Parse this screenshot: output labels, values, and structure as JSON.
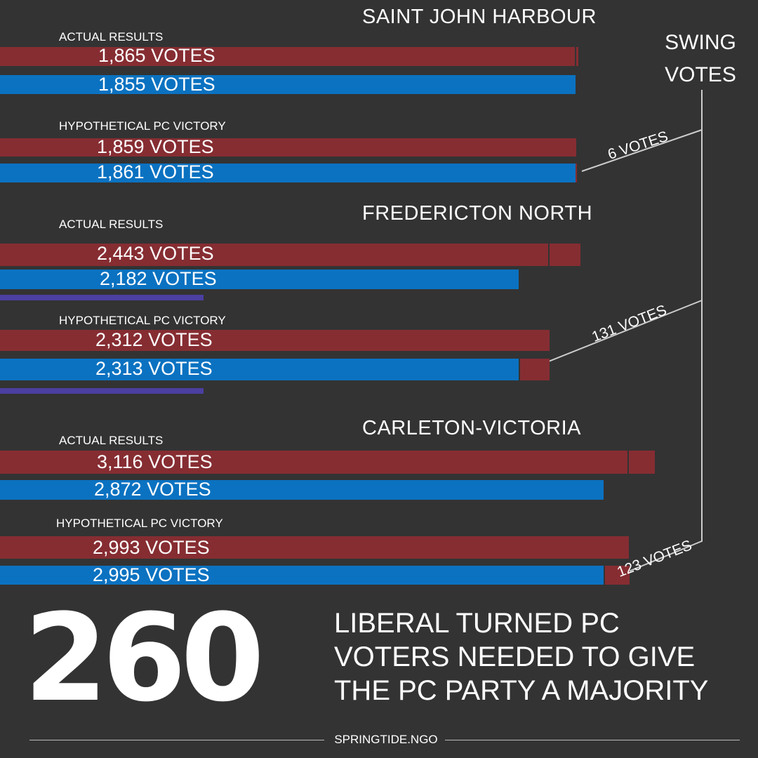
{
  "colors": {
    "background": "#333333",
    "pc": "#862d32",
    "liberal": "#0b72c1",
    "accent_underline": "#4b3fa0",
    "text": "#ffffff",
    "line": "#cccccc"
  },
  "chart_data": {
    "type": "bar",
    "orientation": "horizontal",
    "title": "",
    "series": [
      {
        "name": "",
        "party": "PC",
        "color": "#862d32"
      },
      {
        "name": "",
        "party": "Liberal",
        "color": "#0b72c1"
      }
    ],
    "swing_header": [
      "SWING",
      "VOTES"
    ],
    "ridings": [
      {
        "name": "SAINT JOHN HARBOUR",
        "swing_label": "6 VOTES",
        "swing": 6,
        "scenarios": [
          {
            "label": "ACTUAL RESULTS",
            "pc": {
              "value": 1865,
              "text": "1,865 VOTES"
            },
            "liberal": {
              "value": 1855,
              "text": "1,855 VOTES"
            }
          },
          {
            "label": "HYPOTHETICAL PC VICTORY",
            "pc": {
              "value": 1859,
              "text": "1,859 VOTES"
            },
            "liberal": {
              "value": 1861,
              "text": "1,861 VOTES"
            }
          }
        ]
      },
      {
        "name": "FREDERICTON NORTH",
        "swing_label": "131 VOTES",
        "swing": 131,
        "scenarios": [
          {
            "label": "ACTUAL RESULTS",
            "pc": {
              "value": 2443,
              "text": "2,443 VOTES"
            },
            "liberal": {
              "value": 2182,
              "text": "2,182 VOTES"
            }
          },
          {
            "label": "HYPOTHETICAL PC VICTORY",
            "pc": {
              "value": 2312,
              "text": "2,312 VOTES"
            },
            "liberal": {
              "value": 2313,
              "text": "2,313 VOTES"
            }
          }
        ]
      },
      {
        "name": "CARLETON-VICTORIA",
        "swing_label": "123 VOTES",
        "swing": 123,
        "scenarios": [
          {
            "label": "ACTUAL RESULTS",
            "pc": {
              "value": 3116,
              "text": "3,116 VOTES"
            },
            "liberal": {
              "value": 2872,
              "text": "2,872 VOTES"
            }
          },
          {
            "label": "HYPOTHETICAL PC VICTORY",
            "pc": {
              "value": 2993,
              "text": "2,993 VOTES"
            },
            "liberal": {
              "value": 2995,
              "text": "2,995 VOTES"
            }
          }
        ]
      }
    ]
  },
  "summary": {
    "number": "260",
    "text": "LIBERAL TURNED PC VOTERS NEEDED TO GIVE THE PC PARTY A MAJORITY"
  },
  "footer": {
    "source": "SPRINGTIDE.NGO"
  }
}
